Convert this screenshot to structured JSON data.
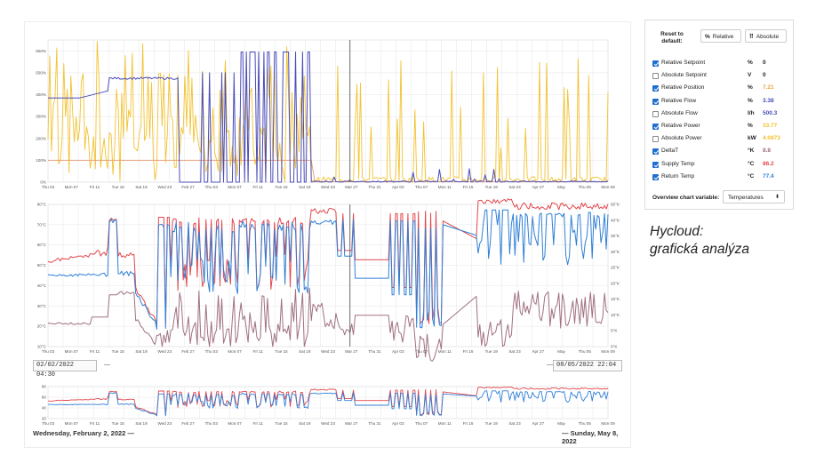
{
  "colors": {
    "position": "#f2c230",
    "flow": "#4a4cb8",
    "power_line": "#e8a47e",
    "supply": "#e2474d",
    "return": "#2f7fd6",
    "deltaT": "#a07080",
    "grid": "#e6e6e6"
  },
  "x_ticks": [
    "Thu 03",
    "Mon 07",
    "Fri 11",
    "Tue 15",
    "Sat 19",
    "Wed 23",
    "Feb 27",
    "Thu 03",
    "Mon 07",
    "Fri 11",
    "Tue 15",
    "Sat 19",
    "Wed 23",
    "Mar 27",
    "Thu 31",
    "Apr 03",
    "Thu 07",
    "Mon 11",
    "Fri 15",
    "Tue 19",
    "Sat 23",
    "Apr 27",
    "May",
    "Thu 05",
    "Mon 09"
  ],
  "top_chart": {
    "y_ticks": [
      "600%",
      "500%",
      "400%",
      "300%",
      "200%",
      "100%",
      "0%"
    ],
    "y_values": [
      600,
      500,
      400,
      300,
      200,
      100,
      0
    ]
  },
  "middle_chart": {
    "left_ticks": [
      "80°C",
      "70°C",
      "60°C",
      "50°C",
      "40°C",
      "30°C",
      "20°C",
      "10°C"
    ],
    "right_ticks": [
      "65°K",
      "40°K",
      "35°K",
      "30°K",
      "25°K",
      "20°K",
      "15°K",
      "10°K",
      "5°K",
      "0°K"
    ]
  },
  "overview_chart": {
    "y_ticks": [
      "80",
      "60",
      "40",
      "20"
    ]
  },
  "range": {
    "start_input": "02/02/2022 04:30",
    "end_input": "08/05/2022 22:04",
    "start_label": "Wednesday, February 2, 2022 —",
    "end_label": "— Sunday, May 8, 2022",
    "arrow_left": "—",
    "arrow_right": "—"
  },
  "panel": {
    "reset_label": "Reset to default:",
    "btn_relative": "Relative",
    "btn_relative_icon": "%",
    "btn_absolute": "Absolute",
    "btn_absolute_icon": "⠿",
    "variables": [
      {
        "name": "Relative Setpoint",
        "unit": "%",
        "value": "0",
        "checked": true,
        "color": "#222222"
      },
      {
        "name": "Absolute Setpoint",
        "unit": "V",
        "value": "0",
        "checked": false,
        "color": "#222222"
      },
      {
        "name": "Relative Position",
        "unit": "%",
        "value": "7.21",
        "checked": true,
        "color": "#e8a13a"
      },
      {
        "name": "Relative Flow",
        "unit": "%",
        "value": "3.38",
        "checked": true,
        "color": "#4a4cb8"
      },
      {
        "name": "Absolute Flow",
        "unit": "l/h",
        "value": "500.3",
        "checked": false,
        "color": "#4a4cb8"
      },
      {
        "name": "Relative Power",
        "unit": "%",
        "value": "33.77",
        "checked": true,
        "color": "#f2c230"
      },
      {
        "name": "Absolute Power",
        "unit": "kW",
        "value": "4.0873",
        "checked": false,
        "color": "#f2c230"
      },
      {
        "name": "DeltaT",
        "unit": "°K",
        "value": "8.8",
        "checked": true,
        "color": "#a07080"
      },
      {
        "name": "Supply Temp",
        "unit": "°C",
        "value": "86.2",
        "checked": true,
        "color": "#e2474d"
      },
      {
        "name": "Return Temp",
        "unit": "°C",
        "value": "77.4",
        "checked": true,
        "color": "#2f7fd6"
      }
    ],
    "overview_label": "Overview chart variable:",
    "overview_value": "Temperatures",
    "overview_chevron": "⬍"
  },
  "caption": {
    "line1": "Hycloud:",
    "line2": "grafická analýza"
  }
}
